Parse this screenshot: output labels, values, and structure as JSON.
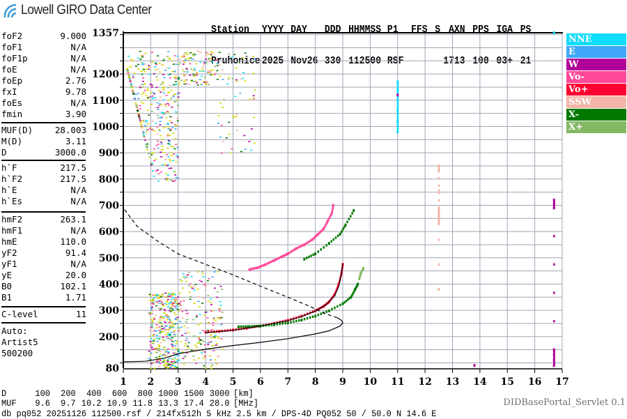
{
  "logo": {
    "text": "Lowell GIRO Data Center"
  },
  "header": {
    "labels": [
      "Station",
      "YYYY",
      "DAY",
      "DDD",
      "HHMMSS",
      "P1",
      "FFS",
      "S",
      "AXN",
      "PPS",
      "IGA",
      "PS"
    ],
    "values": [
      "Pruhonice",
      "2025",
      "Nov26",
      "330",
      "112500",
      "RSF",
      "",
      "1",
      "713",
      "100",
      "03+",
      "21"
    ]
  },
  "params": {
    "group1": [
      {
        "name": "foF2",
        "value": "9.000"
      },
      {
        "name": "foF1",
        "value": "N/A"
      },
      {
        "name": "foF1p",
        "value": "N/A"
      },
      {
        "name": "foE",
        "value": "N/A"
      },
      {
        "name": "foEp",
        "value": "2.76"
      },
      {
        "name": "fxI",
        "value": "9.78"
      },
      {
        "name": "foEs",
        "value": "N/A"
      },
      {
        "name": "fmin",
        "value": "3.90"
      }
    ],
    "group2": [
      {
        "name": "MUF(D)",
        "value": "28.003"
      },
      {
        "name": "M(D)",
        "value": "3.11"
      },
      {
        "name": "D",
        "value": "3000.0"
      }
    ],
    "group3": [
      {
        "name": "h`F",
        "value": "217.5"
      },
      {
        "name": "h`F2",
        "value": "217.5"
      },
      {
        "name": "h`E",
        "value": "N/A"
      },
      {
        "name": "h`Es",
        "value": "N/A"
      }
    ],
    "group4": [
      {
        "name": "hmF2",
        "value": "263.1"
      },
      {
        "name": "hmF1",
        "value": "N/A"
      },
      {
        "name": "hmE",
        "value": "110.0"
      },
      {
        "name": "yF2",
        "value": "91.4"
      },
      {
        "name": "yF1",
        "value": "N/A"
      },
      {
        "name": "yE",
        "value": "20.0"
      },
      {
        "name": "B0",
        "value": "102.1"
      },
      {
        "name": "B1",
        "value": "1.71"
      }
    ],
    "group5": [
      {
        "name": "C-level",
        "value": "11"
      }
    ],
    "autoscale": [
      "Auto:",
      "Artist5",
      "500200"
    ]
  },
  "legend": [
    {
      "label": "NNE",
      "color": "#10dcfc"
    },
    {
      "label": "E",
      "color": "#40a8f8"
    },
    {
      "label": "W",
      "color": "#b00098"
    },
    {
      "label": "Vo-",
      "color": "#ff4898"
    },
    {
      "label": "Vo+",
      "color": "#ff0030"
    },
    {
      "label": "SSW",
      "color": "#f4b4a8"
    },
    {
      "label": "X-",
      "color": "#007800"
    },
    {
      "label": "X+",
      "color": "#84b864"
    }
  ],
  "muf_table": {
    "d_label": "D",
    "d_values": [
      "100",
      "200",
      "400",
      "600",
      "800",
      "1000",
      "1500",
      "3000"
    ],
    "d_unit": "[km]",
    "muf_label": "MUF",
    "muf_values": [
      "9.6",
      "9.7",
      "10.2",
      "10.9",
      "11.8",
      "13.3",
      "17.4",
      "28.0"
    ],
    "muf_unit": "[MHz]"
  },
  "footer": {
    "info": "db pq052 20251126 112500.rsf / 214fx512h 5 kHz 2.5 km / DPS-4D PQ052 50 / 50.0 N 14.6 E",
    "servlet": "DIDBasePortal_Servlet 0.1"
  },
  "chart_data": {
    "type": "scatter",
    "title": "",
    "xlabel": "",
    "ylabel": "",
    "xlim": [
      1,
      17
    ],
    "ylim": [
      80,
      1357
    ],
    "x_ticks": [
      "1",
      "2",
      "3",
      "4",
      "5",
      "6",
      "7",
      "8",
      "9",
      "10",
      "11",
      "12",
      "13",
      "14",
      "15",
      "16",
      "17"
    ],
    "y_ticks": [
      "80",
      "200",
      "300",
      "400",
      "500",
      "600",
      "700",
      "800",
      "900",
      "1000",
      "1100",
      "1200",
      "1357"
    ],
    "grid": true,
    "legend_position": "right",
    "interference_color": "#d8d800",
    "series": [
      {
        "name": "Vo+",
        "color": "#ff0030",
        "points": [
          [
            4.0,
            217
          ],
          [
            4.5,
            220
          ],
          [
            5.0,
            225
          ],
          [
            5.5,
            232
          ],
          [
            6.0,
            240
          ],
          [
            6.5,
            250
          ],
          [
            7.0,
            262
          ],
          [
            7.5,
            278
          ],
          [
            8.0,
            298
          ],
          [
            8.3,
            315
          ],
          [
            8.5,
            332
          ],
          [
            8.7,
            360
          ],
          [
            8.85,
            400
          ],
          [
            8.95,
            440
          ],
          [
            9.0,
            475
          ]
        ]
      },
      {
        "name": "Vo-",
        "color": "#ff4898",
        "points": [
          [
            5.6,
            455
          ],
          [
            5.9,
            462
          ],
          [
            6.2,
            475
          ],
          [
            6.5,
            490
          ],
          [
            6.8,
            505
          ],
          [
            7.0,
            515
          ],
          [
            7.3,
            535
          ],
          [
            7.6,
            550
          ],
          [
            7.9,
            570
          ],
          [
            8.1,
            590
          ],
          [
            8.3,
            610
          ],
          [
            8.45,
            640
          ],
          [
            8.6,
            670
          ],
          [
            8.65,
            700
          ]
        ]
      },
      {
        "name": "X-",
        "color": "#007800",
        "points": [
          [
            5.2,
            237
          ],
          [
            5.6,
            238
          ],
          [
            6.0,
            240
          ],
          [
            6.5,
            245
          ],
          [
            7.0,
            252
          ],
          [
            7.5,
            263
          ],
          [
            8.0,
            278
          ],
          [
            8.5,
            298
          ],
          [
            9.0,
            325
          ],
          [
            9.3,
            350
          ],
          [
            9.45,
            380
          ],
          [
            9.55,
            400
          ],
          [
            7.6,
            495
          ],
          [
            8.0,
            515
          ],
          [
            8.5,
            555
          ],
          [
            8.9,
            590
          ],
          [
            9.1,
            625
          ],
          [
            9.4,
            680
          ]
        ]
      },
      {
        "name": "X+",
        "color": "#84b864",
        "points": [
          [
            9.6,
            420
          ],
          [
            9.65,
            440
          ],
          [
            9.75,
            460
          ]
        ]
      },
      {
        "name": "NNE",
        "color": "#10dcfc",
        "points": [
          [
            11.0,
            980
          ],
          [
            11.0,
            1020
          ],
          [
            11.0,
            1060
          ],
          [
            11.0,
            1100
          ],
          [
            11.0,
            1140
          ],
          [
            11.0,
            1170
          ],
          [
            16.7,
            1357
          ]
        ]
      },
      {
        "name": "W",
        "color": "#b00098",
        "points": [
          [
            16.7,
            90
          ],
          [
            16.7,
            110
          ],
          [
            16.7,
            130
          ],
          [
            16.7,
            150
          ],
          [
            16.7,
            690
          ],
          [
            16.7,
            705
          ],
          [
            16.7,
            720
          ],
          [
            11.0,
            1120
          ],
          [
            13.8,
            90
          ]
        ]
      },
      {
        "name": "SSW",
        "color": "#f4b4a8",
        "points": [
          [
            12.5,
            630
          ],
          [
            12.5,
            650
          ],
          [
            12.5,
            670
          ],
          [
            12.5,
            690
          ],
          [
            12.5,
            830
          ],
          [
            12.5,
            850
          ],
          [
            12.5,
            380
          ]
        ]
      }
    ],
    "clusters": [
      {
        "f_range": [
          1.1,
          3.0
        ],
        "h_range": [
          790,
          1290
        ],
        "count": 420
      },
      {
        "f_range": [
          3.0,
          4.4
        ],
        "h_range": [
          1160,
          1290
        ],
        "count": 120
      },
      {
        "f_range": [
          4.4,
          5.8
        ],
        "h_range": [
          900,
          1290
        ],
        "count": 60
      },
      {
        "f_range": [
          1.9,
          3.0
        ],
        "h_range": [
          80,
          370
        ],
        "count": 380
      },
      {
        "f_range": [
          3.0,
          4.6
        ],
        "h_range": [
          80,
          450
        ],
        "count": 200
      }
    ],
    "curves": [
      {
        "name": "virtual-height-fit",
        "style": "solid",
        "points": [
          [
            4.0,
            215
          ],
          [
            5.0,
            224
          ],
          [
            6.0,
            240
          ],
          [
            7.0,
            261
          ],
          [
            7.5,
            276
          ],
          [
            8.0,
            297
          ],
          [
            8.4,
            322
          ],
          [
            8.7,
            355
          ],
          [
            8.85,
            390
          ],
          [
            8.95,
            440
          ],
          [
            9.0,
            478
          ]
        ]
      },
      {
        "name": "profile",
        "style": "solid",
        "points": [
          [
            1.0,
            104
          ],
          [
            1.8,
            106
          ],
          [
            2.5,
            118
          ],
          [
            3.0,
            135
          ],
          [
            4.0,
            152
          ],
          [
            5.0,
            166
          ],
          [
            6.0,
            178
          ],
          [
            7.0,
            192
          ],
          [
            8.0,
            210
          ],
          [
            8.5,
            222
          ],
          [
            8.9,
            240
          ],
          [
            9.0,
            252
          ],
          [
            8.95,
            262
          ],
          [
            8.8,
            272
          ]
        ]
      },
      {
        "name": "profile-extrapolated",
        "style": "dashed",
        "points": [
          [
            8.8,
            272
          ],
          [
            8.3,
            290
          ],
          [
            7.8,
            315
          ],
          [
            7.0,
            350
          ],
          [
            6.0,
            392
          ],
          [
            5.0,
            435
          ],
          [
            4.0,
            475
          ],
          [
            3.0,
            515
          ],
          [
            2.3,
            560
          ],
          [
            1.5,
            620
          ],
          [
            1.0,
            690
          ]
        ]
      }
    ]
  }
}
